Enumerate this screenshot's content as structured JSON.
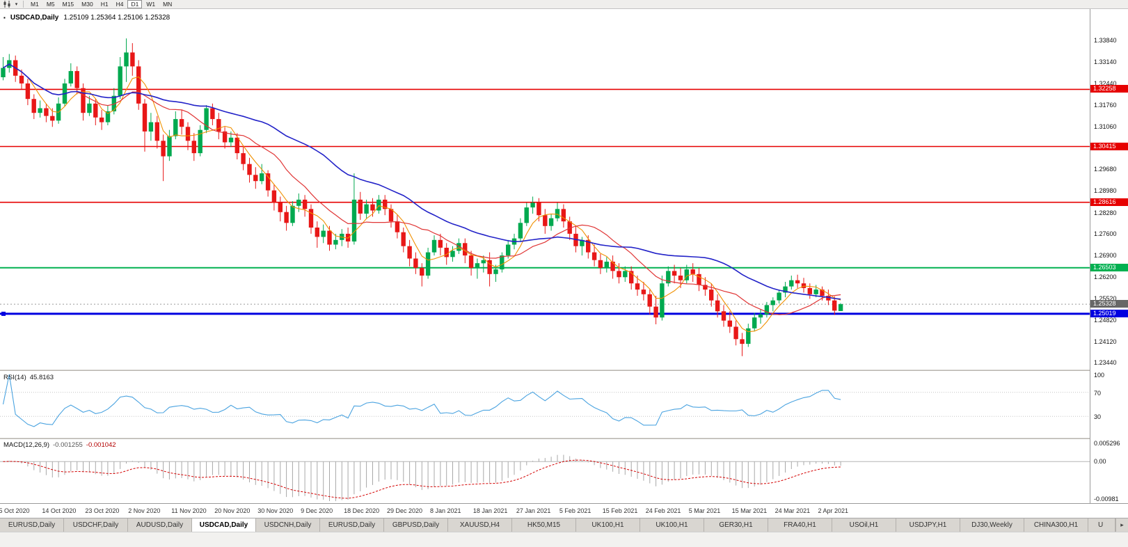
{
  "toolbar": {
    "chart_type_icon": "candlestick-chart-icon",
    "dropdown_icon": "chevron-down-icon",
    "timeframes": [
      "M1",
      "M5",
      "M15",
      "M30",
      "H1",
      "H4",
      "D1",
      "W1",
      "MN"
    ],
    "active_timeframe": "D1"
  },
  "chart": {
    "symbol_title": "USDCAD,Daily",
    "ohlc_values": "1.25109 1.25364 1.25106 1.25328",
    "up_color": "#00a94f",
    "down_color": "#e81717",
    "background": "#ffffff"
  },
  "price_axis": {
    "labels": [
      "1.33840",
      "1.33140",
      "1.32440",
      "1.31760",
      "1.31060",
      "1.30360",
      "1.29680",
      "1.28980",
      "1.28280",
      "1.27600",
      "1.26900",
      "1.26200",
      "1.25520",
      "1.24820",
      "1.24120",
      "1.23440"
    ],
    "values": [
      1.3384,
      1.3314,
      1.3244,
      1.3176,
      1.3106,
      1.3036,
      1.2968,
      1.2898,
      1.2828,
      1.276,
      1.269,
      1.262,
      1.2552,
      1.2482,
      1.2412,
      1.2344
    ],
    "current_price_label": "1.25328",
    "current_price": 1.25328,
    "current_badge_color": "#676767"
  },
  "levels": [
    {
      "label": "1.32258",
      "price": 1.32258,
      "color": "#e60000",
      "width": 1.6
    },
    {
      "label": "1.30415",
      "price": 1.30415,
      "color": "#e60000",
      "width": 1.6
    },
    {
      "label": "1.28616",
      "price": 1.28616,
      "color": "#e60000",
      "width": 1.6
    },
    {
      "label": "1.26503",
      "price": 1.26503,
      "color": "#00b050",
      "width": 2
    },
    {
      "label": "1.25019",
      "price": 1.25019,
      "color": "#0000e0",
      "width": 3
    }
  ],
  "rsi": {
    "name": "RSI(14)",
    "value": "45.8163",
    "period": 14,
    "axis_labels": [
      "100",
      "70",
      "30"
    ],
    "axis_values": [
      100,
      70,
      30
    ],
    "level_lines": [
      70,
      30
    ],
    "line_color": "#4aa3e0"
  },
  "macd": {
    "name": "MACD(12,26,9)",
    "value_main": "-0.001255",
    "value_signal": "-0.001042",
    "fast": 12,
    "slow": 26,
    "signal": 9,
    "axis_labels": [
      "0.005296",
      "0.00",
      "-0.00981"
    ],
    "scale_max": 0.005296,
    "scale_min": -0.00981,
    "histogram_color": "#a8a8a8",
    "signal_color": "#d40000"
  },
  "tabs": {
    "items": [
      {
        "label": "EURUSD,Daily",
        "active": false
      },
      {
        "label": "USDCHF,Daily",
        "active": false
      },
      {
        "label": "AUDUSD,Daily",
        "active": false
      },
      {
        "label": "USDCAD,Daily",
        "active": true
      },
      {
        "label": "USDCNH,Daily",
        "active": false
      },
      {
        "label": "EURUSD,Daily",
        "active": false
      },
      {
        "label": "GBPUSD,Daily",
        "active": false
      },
      {
        "label": "XAUUSD,H4",
        "active": false
      },
      {
        "label": "HK50,M15",
        "active": false
      },
      {
        "label": "UK100,H1",
        "active": false
      },
      {
        "label": "UK100,H1",
        "active": false
      },
      {
        "label": "GER30,H1",
        "active": false
      },
      {
        "label": "FRA40,H1",
        "active": false
      },
      {
        "label": "USOil,H1",
        "active": false
      },
      {
        "label": "USDJPY,H1",
        "active": false
      },
      {
        "label": "DJ30,Weekly",
        "active": false
      },
      {
        "label": "CHINA300,H1",
        "active": false
      },
      {
        "label": "U",
        "active": false,
        "partial": true
      }
    ],
    "scroll_right_icon": "▸"
  },
  "chart_data": {
    "type": "candlestick",
    "symbol": "USDCAD",
    "timeframe": "Daily",
    "x_step": 8.85,
    "candle_width": 6.4,
    "label_every": 7,
    "price_min": 1.2322,
    "price_max": 1.3485,
    "x_labels": [
      "5 Oct 2020",
      "14 Oct 2020",
      "23 Oct 2020",
      "2 Nov 2020",
      "11 Nov 2020",
      "20 Nov 2020",
      "30 Nov 2020",
      "9 Dec 2020",
      "18 Dec 2020",
      "29 Dec 2020",
      "8 Jan 2021",
      "18 Jan 2021",
      "27 Jan 2021",
      "5 Feb 2021",
      "15 Feb 2021",
      "24 Feb 2021",
      "5 Mar 2021",
      "15 Mar 2021",
      "24 Mar 2021",
      "2 Apr 2021"
    ],
    "ma": [
      {
        "type": "sma",
        "period": 5,
        "color": "#f09000",
        "width": 1.1
      },
      {
        "type": "sma",
        "period": 13,
        "color": "#e03535",
        "width": 1.2
      },
      {
        "type": "sma",
        "period": 34,
        "color": "#2222c8",
        "width": 1.6
      }
    ],
    "ohlc": [
      [
        1.3265,
        1.333,
        1.3255,
        1.3295
      ],
      [
        1.3295,
        1.334,
        1.328,
        1.332
      ],
      [
        1.332,
        1.3335,
        1.325,
        1.327
      ],
      [
        1.327,
        1.329,
        1.3225,
        1.3245
      ],
      [
        1.3245,
        1.326,
        1.3175,
        1.3195
      ],
      [
        1.3195,
        1.321,
        1.313,
        1.315
      ],
      [
        1.315,
        1.319,
        1.3135,
        1.3165
      ],
      [
        1.3165,
        1.318,
        1.312,
        1.314
      ],
      [
        1.314,
        1.3165,
        1.3105,
        1.3125
      ],
      [
        1.3125,
        1.32,
        1.3115,
        1.318
      ],
      [
        1.318,
        1.326,
        1.317,
        1.3245
      ],
      [
        1.3245,
        1.331,
        1.3235,
        1.3285
      ],
      [
        1.3285,
        1.33,
        1.321,
        1.323
      ],
      [
        1.323,
        1.3245,
        1.3125,
        1.315
      ],
      [
        1.315,
        1.3205,
        1.314,
        1.318
      ],
      [
        1.318,
        1.3195,
        1.311,
        1.3135
      ],
      [
        1.3135,
        1.316,
        1.3095,
        1.312
      ],
      [
        1.312,
        1.3175,
        1.311,
        1.3155
      ],
      [
        1.3155,
        1.323,
        1.3145,
        1.3205
      ],
      [
        1.3205,
        1.333,
        1.3195,
        1.33
      ],
      [
        1.33,
        1.339,
        1.325,
        1.3345
      ],
      [
        1.3345,
        1.3375,
        1.327,
        1.33
      ],
      [
        1.33,
        1.332,
        1.316,
        1.318
      ],
      [
        1.318,
        1.3195,
        1.3025,
        1.309
      ],
      [
        1.309,
        1.315,
        1.306,
        1.312
      ],
      [
        1.312,
        1.314,
        1.3035,
        1.306
      ],
      [
        1.306,
        1.308,
        1.293,
        1.301
      ],
      [
        1.301,
        1.3095,
        1.2995,
        1.3075
      ],
      [
        1.3075,
        1.3155,
        1.3065,
        1.313
      ],
      [
        1.313,
        1.316,
        1.308,
        1.3105
      ],
      [
        1.3105,
        1.312,
        1.303,
        1.306
      ],
      [
        1.306,
        1.3085,
        1.2995,
        1.302
      ],
      [
        1.302,
        1.311,
        1.301,
        1.3095
      ],
      [
        1.3095,
        1.3175,
        1.3085,
        1.3165
      ],
      [
        1.3165,
        1.318,
        1.311,
        1.313
      ],
      [
        1.313,
        1.315,
        1.3065,
        1.309
      ],
      [
        1.309,
        1.3105,
        1.3035,
        1.3055
      ],
      [
        1.3055,
        1.309,
        1.304,
        1.307
      ],
      [
        1.307,
        1.3085,
        1.3,
        1.302
      ],
      [
        1.302,
        1.304,
        1.2965,
        1.2985
      ],
      [
        1.2985,
        1.3005,
        1.2925,
        1.295
      ],
      [
        1.295,
        1.2975,
        1.2905,
        1.293
      ],
      [
        1.293,
        1.2985,
        1.292,
        1.2955
      ],
      [
        1.2955,
        1.2965,
        1.288,
        1.29
      ],
      [
        1.29,
        1.292,
        1.2835,
        1.286
      ],
      [
        1.286,
        1.288,
        1.28,
        1.283
      ],
      [
        1.283,
        1.285,
        1.277,
        1.2795
      ],
      [
        1.2795,
        1.2865,
        1.2785,
        1.285
      ],
      [
        1.285,
        1.289,
        1.283,
        1.287
      ],
      [
        1.287,
        1.2885,
        1.2815,
        1.284
      ],
      [
        1.284,
        1.2855,
        1.276,
        1.278
      ],
      [
        1.278,
        1.28,
        1.2715,
        1.275
      ],
      [
        1.275,
        1.279,
        1.273,
        1.277
      ],
      [
        1.277,
        1.2785,
        1.2705,
        1.2725
      ],
      [
        1.2725,
        1.276,
        1.271,
        1.274
      ],
      [
        1.274,
        1.2775,
        1.272,
        1.276
      ],
      [
        1.276,
        1.278,
        1.2715,
        1.2735
      ],
      [
        1.2735,
        1.2955,
        1.2725,
        1.287
      ],
      [
        1.287,
        1.2895,
        1.2805,
        1.2825
      ],
      [
        1.2825,
        1.287,
        1.281,
        1.2855
      ],
      [
        1.2855,
        1.2875,
        1.2815,
        1.2835
      ],
      [
        1.2835,
        1.2885,
        1.2825,
        1.287
      ],
      [
        1.287,
        1.2885,
        1.282,
        1.284
      ],
      [
        1.284,
        1.2855,
        1.278,
        1.28
      ],
      [
        1.28,
        1.282,
        1.2745,
        1.2765
      ],
      [
        1.2765,
        1.278,
        1.27,
        1.272
      ],
      [
        1.272,
        1.274,
        1.2655,
        1.268
      ],
      [
        1.268,
        1.27,
        1.263,
        1.265
      ],
      [
        1.265,
        1.2665,
        1.259,
        1.2625
      ],
      [
        1.2625,
        1.2715,
        1.2615,
        1.27
      ],
      [
        1.27,
        1.2755,
        1.269,
        1.274
      ],
      [
        1.274,
        1.276,
        1.269,
        1.2715
      ],
      [
        1.2715,
        1.273,
        1.266,
        1.2685
      ],
      [
        1.2685,
        1.272,
        1.267,
        1.2705
      ],
      [
        1.2705,
        1.2745,
        1.2695,
        1.273
      ],
      [
        1.273,
        1.2745,
        1.2665,
        1.269
      ],
      [
        1.269,
        1.2705,
        1.2625,
        1.265
      ],
      [
        1.265,
        1.268,
        1.2615,
        1.2665
      ],
      [
        1.2665,
        1.269,
        1.2635,
        1.2675
      ],
      [
        1.2675,
        1.27,
        1.259,
        1.263
      ],
      [
        1.263,
        1.266,
        1.2605,
        1.2645
      ],
      [
        1.2645,
        1.27,
        1.2635,
        1.269
      ],
      [
        1.269,
        1.274,
        1.268,
        1.2725
      ],
      [
        1.2725,
        1.276,
        1.271,
        1.2745
      ],
      [
        1.2745,
        1.281,
        1.2735,
        1.2795
      ],
      [
        1.2795,
        1.286,
        1.2785,
        1.2845
      ],
      [
        1.2845,
        1.288,
        1.2825,
        1.286
      ],
      [
        1.286,
        1.2875,
        1.28,
        1.282
      ],
      [
        1.282,
        1.284,
        1.276,
        1.2785
      ],
      [
        1.2785,
        1.2825,
        1.277,
        1.281
      ],
      [
        1.281,
        1.286,
        1.28,
        1.284
      ],
      [
        1.284,
        1.2855,
        1.278,
        1.28
      ],
      [
        1.28,
        1.2815,
        1.274,
        1.276
      ],
      [
        1.276,
        1.2785,
        1.27,
        1.272
      ],
      [
        1.272,
        1.275,
        1.269,
        1.274
      ],
      [
        1.274,
        1.2755,
        1.268,
        1.27
      ],
      [
        1.27,
        1.2725,
        1.2655,
        1.2675
      ],
      [
        1.2675,
        1.2695,
        1.263,
        1.265
      ],
      [
        1.265,
        1.2685,
        1.2635,
        1.267
      ],
      [
        1.267,
        1.269,
        1.2615,
        1.264
      ],
      [
        1.264,
        1.2665,
        1.26,
        1.262
      ],
      [
        1.262,
        1.2655,
        1.2605,
        1.264
      ],
      [
        1.264,
        1.2655,
        1.258,
        1.26
      ],
      [
        1.26,
        1.2625,
        1.256,
        1.258
      ],
      [
        1.258,
        1.2605,
        1.2545,
        1.2565
      ],
      [
        1.2565,
        1.258,
        1.25,
        1.2525
      ],
      [
        1.2525,
        1.256,
        1.2468,
        1.249
      ],
      [
        1.249,
        1.2625,
        1.248,
        1.26
      ],
      [
        1.26,
        1.2655,
        1.259,
        1.264
      ],
      [
        1.264,
        1.266,
        1.26,
        1.2625
      ],
      [
        1.2625,
        1.265,
        1.2585,
        1.261
      ],
      [
        1.261,
        1.266,
        1.26,
        1.2645
      ],
      [
        1.2645,
        1.2665,
        1.2605,
        1.263
      ],
      [
        1.263,
        1.265,
        1.2575,
        1.2595
      ],
      [
        1.2595,
        1.262,
        1.256,
        1.258
      ],
      [
        1.258,
        1.26,
        1.2525,
        1.2545
      ],
      [
        1.2545,
        1.2565,
        1.249,
        1.251
      ],
      [
        1.251,
        1.253,
        1.246,
        1.248
      ],
      [
        1.248,
        1.251,
        1.244,
        1.246
      ],
      [
        1.246,
        1.248,
        1.24,
        1.242
      ],
      [
        1.242,
        1.244,
        1.2365,
        1.2405
      ],
      [
        1.2405,
        1.247,
        1.2395,
        1.2455
      ],
      [
        1.2455,
        1.2505,
        1.2445,
        1.249
      ],
      [
        1.249,
        1.2515,
        1.247,
        1.25
      ],
      [
        1.25,
        1.254,
        1.249,
        1.253
      ],
      [
        1.253,
        1.2555,
        1.251,
        1.2545
      ],
      [
        1.2545,
        1.258,
        1.2535,
        1.257
      ],
      [
        1.257,
        1.2605,
        1.2555,
        1.259
      ],
      [
        1.259,
        1.2625,
        1.258,
        1.261
      ],
      [
        1.261,
        1.2628,
        1.2585,
        1.26
      ],
      [
        1.26,
        1.2618,
        1.257,
        1.2585
      ],
      [
        1.2585,
        1.26,
        1.255,
        1.2565
      ],
      [
        1.2565,
        1.2595,
        1.2555,
        1.258
      ],
      [
        1.258,
        1.259,
        1.2545,
        1.256
      ],
      [
        1.256,
        1.258,
        1.253,
        1.2545
      ],
      [
        1.2545,
        1.2558,
        1.2498,
        1.2512
      ],
      [
        1.25109,
        1.25364,
        1.25106,
        1.25328
      ]
    ]
  }
}
